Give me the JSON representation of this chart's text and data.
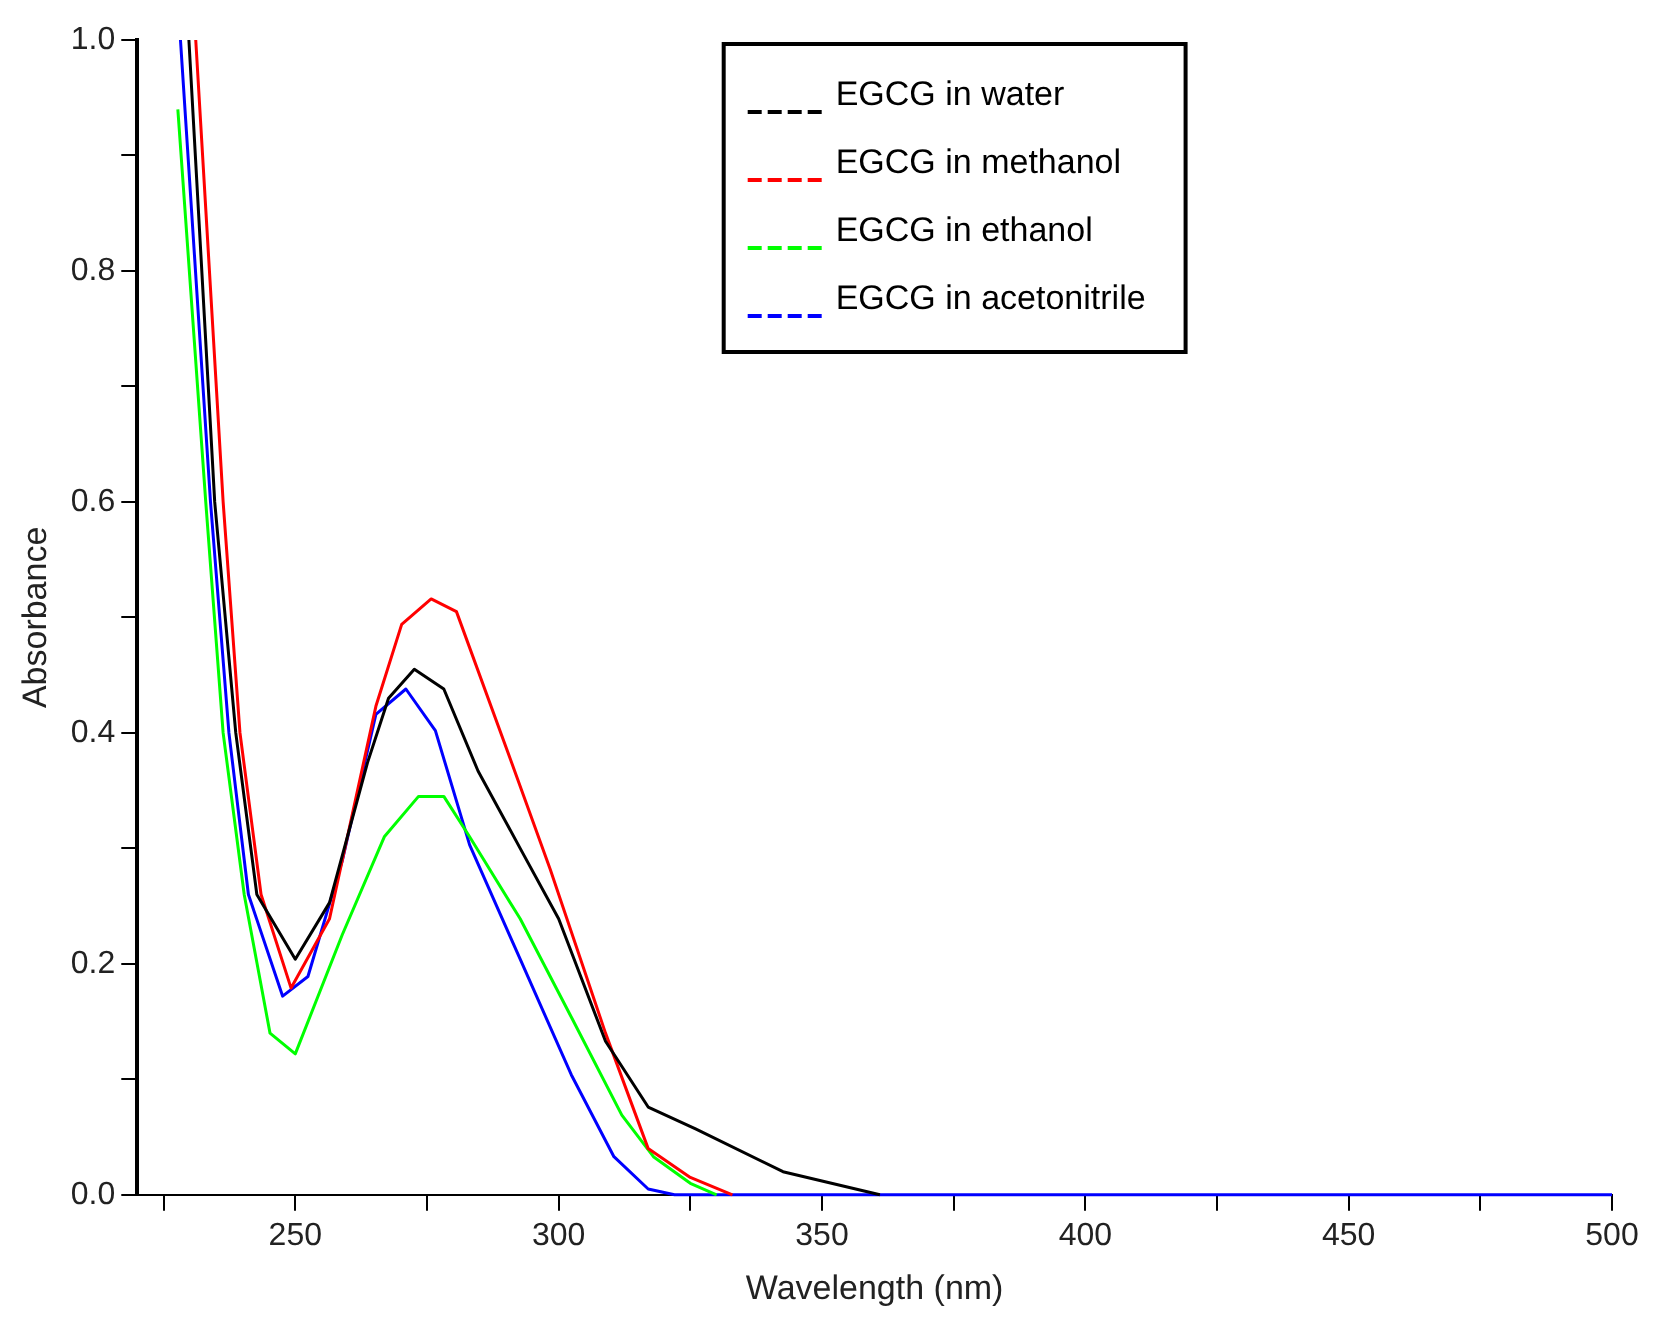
{
  "chart_data": {
    "type": "line",
    "xlabel": "Wavelength (nm)",
    "ylabel": "Absorbance",
    "xlim": [
      220,
      500
    ],
    "xticks": [
      {
        "value": 225,
        "label": null
      },
      250,
      {
        "value": 275,
        "label": null
      },
      300,
      {
        "value": 325,
        "label": null
      },
      350,
      {
        "value": 375,
        "label": null
      },
      400,
      {
        "value": 425,
        "label": null
      },
      450,
      {
        "value": 475,
        "label": null
      },
      500
    ],
    "ylim": [
      0,
      1
    ],
    "yticks": [
      "0.0",
      {
        "value": 0.1,
        "label": null
      },
      {
        "value": 0.2,
        "label": "0.2"
      },
      {
        "value": 0.3,
        "label": null
      },
      {
        "value": 0.4,
        "label": "0.4"
      },
      {
        "value": 0.5,
        "label": null
      },
      {
        "value": 0.6,
        "label": "0.6"
      },
      {
        "value": 0.7,
        "label": null
      },
      {
        "value": 0.8,
        "label": "0.8"
      },
      {
        "value": 0.9,
        "label": null
      },
      {
        "value": 1,
        "label": "1.0"
      }
    ],
    "grid": false,
    "legend": "top",
    "marker": "none",
    "line_style": "solid",
    "series": [
      {
        "name": "EGCG in water",
        "color": "#000000",
        "x": [
          229.8,
          234.7,
          238.7,
          242.7,
          250,
          256.5,
          263.7,
          267.7,
          272.6,
          278.2,
          284.7,
          292.7,
          300,
          308.9,
          317,
          326,
          342.6,
          361
        ],
        "values": [
          1.0,
          0.6,
          0.4,
          0.26,
          0.204,
          0.253,
          0.374,
          0.43,
          0.455,
          0.438,
          0.367,
          0.3,
          0.239,
          0.133,
          0.076,
          0.057,
          0.02,
          0
        ]
      },
      {
        "name": "EGCG in methanol",
        "color": "#ff0000",
        "x": [
          231.1,
          236.3,
          239.5,
          243.5,
          249.2,
          256.5,
          265.3,
          270.2,
          275.8,
          280.6,
          291.1,
          298.4,
          308.9,
          317,
          325,
          333
        ],
        "values": [
          1.0,
          0.6,
          0.4,
          0.26,
          0.179,
          0.239,
          0.423,
          0.494,
          0.516,
          0.505,
          0.374,
          0.282,
          0.14,
          0.04,
          0.015,
          0
        ]
      },
      {
        "name": "EGCG in ethanol",
        "color": "#00ff00",
        "x": [
          227.7,
          233,
          236.3,
          240.3,
          245.2,
          250,
          258.9,
          266.9,
          273.4,
          278.2,
          283.1,
          292.7,
          302.4,
          312,
          318,
          325,
          330
        ],
        "values": [
          0.94,
          0.6,
          0.4,
          0.26,
          0.14,
          0.122,
          0.225,
          0.31,
          0.345,
          0.345,
          0.31,
          0.239,
          0.154,
          0.069,
          0.033,
          0.01,
          0
        ]
      },
      {
        "name": "EGCG in acetonitrile",
        "color": "#0000ff",
        "x": [
          228.2,
          233.9,
          237.4,
          241.1,
          247.6,
          252.4,
          258.9,
          265.3,
          271,
          276.6,
          283.1,
          292.7,
          302.4,
          310.5,
          317,
          322,
          500
        ],
        "values": [
          1.0,
          0.6,
          0.4,
          0.26,
          0.172,
          0.189,
          0.289,
          0.416,
          0.438,
          0.402,
          0.303,
          0.204,
          0.104,
          0.033,
          0.005,
          0,
          0
        ]
      }
    ]
  }
}
